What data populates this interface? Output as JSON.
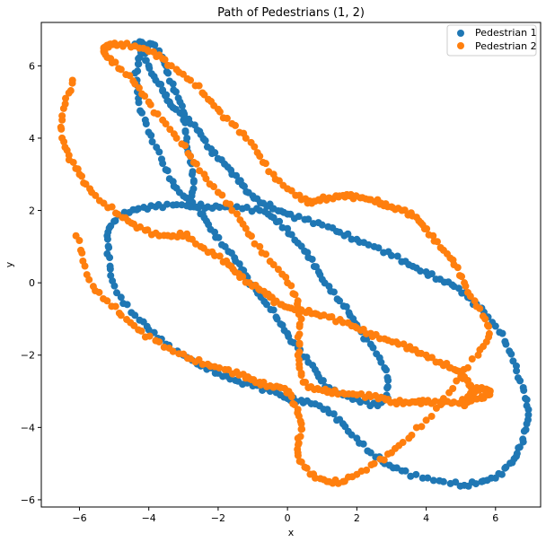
{
  "chart_data": {
    "type": "scatter",
    "title": "Path of Pedestrians (1, 2)",
    "xlabel": "x",
    "ylabel": "y",
    "xlim": [
      -7.1,
      7.3
    ],
    "ylim": [
      -6.2,
      7.2
    ],
    "xticks": [
      -6,
      -4,
      -2,
      0,
      2,
      4,
      6
    ],
    "yticks": [
      -6,
      -4,
      -2,
      0,
      2,
      4,
      6
    ],
    "grid": false,
    "legend_position": "top-right",
    "series": [
      {
        "name": "Pedestrian 1",
        "color": "#1f77b4",
        "x": [
          -4.4,
          -4.2,
          -4.1,
          -4.0,
          -3.8,
          -3.6,
          -3.4,
          -3.1,
          -2.8,
          -2.5,
          -2.2,
          -1.9,
          -1.6,
          -1.3,
          -1.0,
          -0.7,
          -0.4,
          0.0,
          0.5,
          1.0,
          1.5,
          2.0,
          2.5,
          3.0,
          3.5,
          4.0,
          4.4,
          4.8,
          5.2,
          5.6,
          6.0,
          6.3,
          6.6,
          6.8,
          6.9,
          6.9,
          6.8,
          6.6,
          6.3,
          6.0,
          5.6,
          5.1,
          4.5,
          3.9,
          3.3,
          2.8,
          2.4,
          2.0,
          1.6,
          1.2,
          0.8,
          0.4,
          0.0,
          -0.5,
          -1.0,
          -1.5,
          -2.0,
          -2.5,
          -3.0,
          -3.5,
          -4.0,
          -4.4,
          -4.8,
          -5.1,
          -5.2,
          -5.2,
          -5.0,
          -4.7,
          -4.3,
          -3.8,
          -3.3,
          -2.8,
          -2.3,
          -1.8,
          -1.3,
          -0.8,
          -0.4,
          0.0,
          0.3,
          0.6,
          0.9,
          1.2,
          1.5,
          1.8,
          2.1,
          2.4,
          2.7,
          2.9,
          2.9,
          2.6,
          2.1,
          1.6,
          1.2,
          0.9,
          0.6,
          0.3,
          0.0,
          -0.3,
          -0.6,
          -0.9,
          -1.2,
          -1.5,
          -1.8,
          -2.1,
          -2.4,
          -2.7,
          -3.0,
          -3.3,
          -3.6,
          -3.9,
          -4.1,
          -4.3,
          -4.4,
          -4.3,
          -4.1,
          -3.9,
          -3.7,
          -3.5,
          -3.3,
          -3.1,
          -3.0,
          -2.9,
          -2.8,
          -2.75,
          -2.75,
          -2.8
        ],
        "y": [
          6.6,
          6.65,
          6.4,
          6.0,
          5.6,
          5.3,
          5.0,
          4.7,
          4.4,
          4.1,
          3.7,
          3.4,
          3.0,
          2.7,
          2.4,
          2.2,
          2.05,
          1.9,
          1.75,
          1.6,
          1.4,
          1.2,
          1.0,
          0.75,
          0.5,
          0.3,
          0.1,
          -0.1,
          -0.4,
          -0.7,
          -1.2,
          -1.7,
          -2.3,
          -2.9,
          -3.4,
          -3.9,
          -4.4,
          -4.8,
          -5.1,
          -5.4,
          -5.5,
          -5.6,
          -5.5,
          -5.4,
          -5.2,
          -5.0,
          -4.7,
          -4.3,
          -3.9,
          -3.6,
          -3.35,
          -3.25,
          -3.2,
          -3.0,
          -2.85,
          -2.7,
          -2.5,
          -2.3,
          -2.0,
          -1.7,
          -1.3,
          -0.9,
          -0.4,
          0.2,
          0.8,
          1.3,
          1.7,
          1.95,
          2.05,
          2.1,
          2.15,
          2.15,
          2.1,
          2.1,
          2.05,
          2.0,
          1.8,
          1.5,
          1.1,
          0.7,
          0.3,
          -0.1,
          -0.5,
          -0.9,
          -1.3,
          -1.7,
          -2.2,
          -2.7,
          -3.2,
          -3.4,
          -3.3,
          -3.1,
          -2.9,
          -2.6,
          -2.2,
          -1.8,
          -1.4,
          -1.0,
          -0.6,
          -0.2,
          0.2,
          0.6,
          1.0,
          1.4,
          1.8,
          2.1,
          2.4,
          2.8,
          3.3,
          3.9,
          4.5,
          5.1,
          5.8,
          6.2,
          6.5,
          6.6,
          6.3,
          6.0,
          5.5,
          5.0,
          4.5,
          4.0,
          3.5,
          3.0,
          2.5,
          2.1
        ]
      },
      {
        "name": "Pedestrian 2",
        "color": "#ff7f0e",
        "x": [
          -6.2,
          -6.4,
          -6.5,
          -6.45,
          -6.3,
          -6.0,
          -5.7,
          -5.3,
          -4.9,
          -4.5,
          -4.1,
          -3.7,
          -3.3,
          -2.9,
          -2.5,
          -2.1,
          -1.7,
          -1.4,
          -1.1,
          -0.8,
          -0.5,
          -0.2,
          0.1,
          0.4,
          0.8,
          1.2,
          1.6,
          2.0,
          2.4,
          2.8,
          3.2,
          3.6,
          4.0,
          4.4,
          4.7,
          5.0,
          5.2,
          5.3,
          5.3,
          5.2,
          5.1,
          5.1,
          5.2,
          5.4,
          5.6,
          5.8,
          5.8,
          5.6,
          5.2,
          4.8,
          4.4,
          4.0,
          3.7,
          3.4,
          3.1,
          2.8,
          2.4,
          2.0,
          1.6,
          1.2,
          0.9,
          0.6,
          0.4,
          0.3,
          0.3,
          0.4,
          0.3,
          0.0,
          -0.4,
          -0.8,
          -1.2,
          -1.6,
          -2.0,
          -2.4,
          -2.8,
          -3.2,
          -3.6,
          -4.0,
          -4.4,
          -4.8,
          -5.1,
          -5.3,
          -5.3,
          -5.1,
          -4.8,
          -4.4,
          -4.0,
          -3.6,
          -3.2,
          -2.8,
          -2.4,
          -2.0,
          -1.6,
          -1.2,
          -0.8,
          -0.4,
          0.0,
          0.4,
          0.7,
          0.9,
          1.2,
          1.5,
          1.8,
          2.1,
          2.4,
          2.7,
          3.0,
          3.3,
          3.6,
          3.9,
          4.2,
          4.5,
          4.8,
          5.1,
          5.4,
          5.7,
          5.8,
          5.5,
          5.0,
          4.5,
          4.0,
          3.5,
          3.0,
          2.5,
          2.0,
          1.6,
          1.2,
          0.8,
          0.5,
          0.3,
          0.3,
          0.4,
          0.3,
          0.1,
          -0.2,
          -0.5,
          -0.8,
          -1.1,
          -1.4,
          -1.8,
          -2.3,
          -2.8,
          -3.3,
          -3.8,
          -4.3,
          -4.8,
          -5.2,
          -5.6,
          -5.9,
          -6.1
        ],
        "y": [
          5.6,
          5.1,
          4.5,
          3.9,
          3.4,
          3.0,
          2.6,
          2.2,
          1.9,
          1.65,
          1.45,
          1.3,
          1.3,
          1.35,
          1.0,
          0.75,
          0.5,
          0.25,
          0.0,
          -0.2,
          -0.4,
          -0.6,
          -0.7,
          -0.75,
          -0.85,
          -0.95,
          -1.1,
          -1.25,
          -1.4,
          -1.55,
          -1.7,
          -1.85,
          -2.0,
          -2.2,
          -2.35,
          -2.5,
          -2.7,
          -2.9,
          -3.1,
          -3.3,
          -3.4,
          -3.3,
          -3.15,
          -3.0,
          -2.9,
          -3.0,
          -3.1,
          -3.2,
          -3.25,
          -3.3,
          -3.3,
          -3.3,
          -3.3,
          -3.3,
          -3.3,
          -3.2,
          -3.15,
          -3.1,
          -3.05,
          -3.0,
          -2.95,
          -2.9,
          -2.5,
          -2.0,
          -1.5,
          -1.0,
          -0.5,
          0.0,
          0.5,
          1.0,
          1.5,
          2.0,
          2.5,
          3.0,
          3.5,
          4.0,
          4.5,
          5.0,
          5.5,
          5.9,
          6.2,
          6.4,
          6.5,
          6.6,
          6.6,
          6.55,
          6.4,
          6.2,
          5.9,
          5.6,
          5.2,
          4.8,
          4.4,
          4.0,
          3.5,
          3.0,
          2.6,
          2.3,
          2.2,
          2.3,
          2.35,
          2.4,
          2.4,
          2.35,
          2.3,
          2.2,
          2.1,
          2.0,
          1.85,
          1.6,
          1.3,
          0.9,
          0.5,
          0.0,
          -0.5,
          -1.0,
          -1.5,
          -2.0,
          -2.6,
          -3.2,
          -3.8,
          -4.3,
          -4.7,
          -5.0,
          -5.3,
          -5.5,
          -5.5,
          -5.4,
          -5.1,
          -4.7,
          -4.3,
          -3.9,
          -3.5,
          -3.1,
          -2.9,
          -2.85,
          -2.75,
          -2.65,
          -2.55,
          -2.4,
          -2.25,
          -2.1,
          -1.9,
          -1.6,
          -1.3,
          -0.9,
          -0.5,
          -0.1,
          0.6,
          1.3
        ]
      }
    ]
  }
}
